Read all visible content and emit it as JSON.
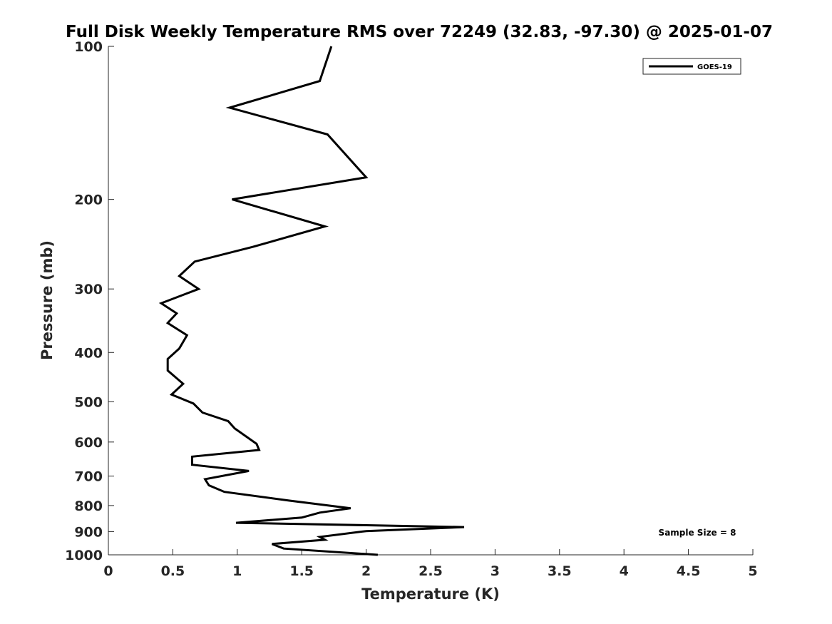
{
  "chart_data": {
    "type": "line",
    "title": "Full Disk Weekly Temperature RMS over 72249 (32.83, -97.30) @ 2025-01-07",
    "xlabel": "Temperature (K)",
    "ylabel": "Pressure (mb)",
    "xlim": [
      0,
      5
    ],
    "ylim": [
      100,
      1000
    ],
    "y_scale": "log",
    "y_reversed": true,
    "grid": false,
    "legend_position": "top-right",
    "x_ticks": [
      "0",
      "0.5",
      "1",
      "1.5",
      "2",
      "2.5",
      "3",
      "3.5",
      "4",
      "4.5",
      "5"
    ],
    "y_ticks": [
      "100",
      "200",
      "300",
      "400",
      "500",
      "600",
      "700",
      "800",
      "900",
      "1000"
    ],
    "series": [
      {
        "name": "GOES-19",
        "color": "#000000",
        "points": [
          [
            1.73,
            100
          ],
          [
            1.64,
            117
          ],
          [
            0.94,
            132
          ],
          [
            1.7,
            149
          ],
          [
            2.0,
            181
          ],
          [
            0.96,
            200
          ],
          [
            1.68,
            226
          ],
          [
            1.12,
            248
          ],
          [
            0.67,
            265
          ],
          [
            0.55,
            283
          ],
          [
            0.7,
            300
          ],
          [
            0.41,
            320
          ],
          [
            0.53,
            335
          ],
          [
            0.46,
            350
          ],
          [
            0.61,
            370
          ],
          [
            0.55,
            393
          ],
          [
            0.46,
            412
          ],
          [
            0.46,
            434
          ],
          [
            0.58,
            461
          ],
          [
            0.49,
            484
          ],
          [
            0.66,
            504
          ],
          [
            0.73,
            525
          ],
          [
            0.93,
            546
          ],
          [
            0.98,
            564
          ],
          [
            1.06,
            583
          ],
          [
            1.15,
            605
          ],
          [
            1.17,
            622
          ],
          [
            0.65,
            641
          ],
          [
            0.65,
            665
          ],
          [
            1.09,
            684
          ],
          [
            0.75,
            710
          ],
          [
            0.78,
            730
          ],
          [
            0.9,
            752
          ],
          [
            1.4,
            782
          ],
          [
            1.88,
            810
          ],
          [
            1.64,
            826
          ],
          [
            1.5,
            845
          ],
          [
            0.99,
            865
          ],
          [
            2.76,
            882
          ],
          [
            2.0,
            898
          ],
          [
            1.64,
            922
          ],
          [
            1.68,
            934
          ],
          [
            1.27,
            952
          ],
          [
            1.36,
            972
          ],
          [
            2.09,
            1000
          ]
        ]
      }
    ],
    "annotation": "Sample Size = 8"
  }
}
